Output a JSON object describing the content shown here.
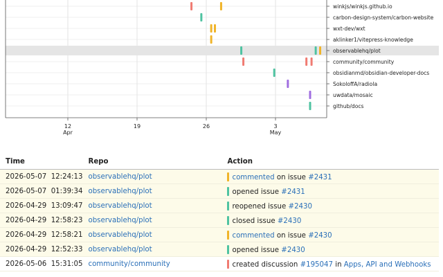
{
  "colors": {
    "commented": "#f0b429",
    "opened": "#4fc3a1",
    "reopened": "#4fc3a1",
    "closed": "#4fc3a1",
    "created": "#f07b72",
    "purple": "#a06ee0",
    "row_highlight": "#e5e5e5",
    "table_highlight": "#fdfbe9",
    "link": "#2a6fb8"
  },
  "chart_data": {
    "type": "scatter",
    "x_axis": {
      "ticks": [
        {
          "date": "2026-04-12",
          "label": "12",
          "sublabel": "Apr"
        },
        {
          "date": "2026-04-19",
          "label": "19",
          "sublabel": ""
        },
        {
          "date": "2026-04-26",
          "label": "26",
          "sublabel": ""
        },
        {
          "date": "2026-05-03",
          "label": "3",
          "sublabel": "May"
        }
      ]
    },
    "repos": [
      "winkjs/winkjs.github.io",
      "carbon-design-system/carbon-website",
      "wxt-dev/wxt",
      "aklinker1/vitepress-knowledge",
      "observablehq/plot",
      "community/community",
      "obsidianmd/obsidian-developer-docs",
      "SokoloffA/radiola",
      "uwdata/mosaic",
      "github/docs"
    ],
    "highlighted_repo": "observablehq/plot",
    "events": [
      {
        "repo": "winkjs/winkjs.github.io",
        "date": "2026-04-24T12:00",
        "kind": "created"
      },
      {
        "repo": "winkjs/winkjs.github.io",
        "date": "2026-04-27T12:00",
        "kind": "commented"
      },
      {
        "repo": "carbon-design-system/carbon-website",
        "date": "2026-04-25T12:00",
        "kind": "opened"
      },
      {
        "repo": "wxt-dev/wxt",
        "date": "2026-04-26T12:00",
        "kind": "commented"
      },
      {
        "repo": "wxt-dev/wxt",
        "date": "2026-04-26T21:00",
        "kind": "commented"
      },
      {
        "repo": "aklinker1/vitepress-knowledge",
        "date": "2026-04-26T12:00",
        "kind": "commented"
      },
      {
        "repo": "observablehq/plot",
        "date": "2026-04-29T12:58",
        "kind": "opened"
      },
      {
        "repo": "observablehq/plot",
        "date": "2026-05-07T01:39",
        "kind": "opened"
      },
      {
        "repo": "observablehq/plot",
        "date": "2026-05-07T12:24",
        "kind": "commented"
      },
      {
        "repo": "community/community",
        "date": "2026-04-29T18:00",
        "kind": "created"
      },
      {
        "repo": "community/community",
        "date": "2026-05-06T03:00",
        "kind": "created"
      },
      {
        "repo": "community/community",
        "date": "2026-05-06T15:31",
        "kind": "created"
      },
      {
        "repo": "obsidianmd/obsidian-developer-docs",
        "date": "2026-05-02T21:00",
        "kind": "opened"
      },
      {
        "repo": "SokoloffA/radiola",
        "date": "2026-05-04T06:00",
        "kind": "purple"
      },
      {
        "repo": "uwdata/mosaic",
        "date": "2026-05-06T12:00",
        "kind": "purple"
      },
      {
        "repo": "github/docs",
        "date": "2026-05-06T12:00",
        "kind": "opened"
      }
    ]
  },
  "table": {
    "headers": {
      "time": "Time",
      "repo": "Repo",
      "action": "Action"
    },
    "rows": [
      {
        "date": "2026-05-07",
        "time": "12:24:13",
        "repo": "observablehq/plot",
        "kind": "commented",
        "verb": "commented",
        "verb_is_link": true,
        "mid": " on issue ",
        "ref": "#2431",
        "tail": "",
        "tail_link": "",
        "highlight": true
      },
      {
        "date": "2026-05-07",
        "time": "01:39:34",
        "repo": "observablehq/plot",
        "kind": "opened",
        "verb": "opened issue",
        "verb_is_link": false,
        "mid": " ",
        "ref": "#2431",
        "tail": "",
        "tail_link": "",
        "highlight": true
      },
      {
        "date": "2026-04-29",
        "time": "13:09:47",
        "repo": "observablehq/plot",
        "kind": "reopened",
        "verb": "reopened issue",
        "verb_is_link": false,
        "mid": " ",
        "ref": "#2430",
        "tail": "",
        "tail_link": "",
        "highlight": true
      },
      {
        "date": "2026-04-29",
        "time": "12:58:23",
        "repo": "observablehq/plot",
        "kind": "closed",
        "verb": "closed issue",
        "verb_is_link": false,
        "mid": " ",
        "ref": "#2430",
        "tail": "",
        "tail_link": "",
        "highlight": true
      },
      {
        "date": "2026-04-29",
        "time": "12:58:21",
        "repo": "observablehq/plot",
        "kind": "commented",
        "verb": "commented",
        "verb_is_link": true,
        "mid": " on issue ",
        "ref": "#2430",
        "tail": "",
        "tail_link": "",
        "highlight": true
      },
      {
        "date": "2026-04-29",
        "time": "12:52:33",
        "repo": "observablehq/plot",
        "kind": "opened",
        "verb": "opened issue",
        "verb_is_link": false,
        "mid": " ",
        "ref": "#2430",
        "tail": "",
        "tail_link": "",
        "highlight": true
      },
      {
        "date": "2026-05-06",
        "time": "15:31:05",
        "repo": "community/community",
        "kind": "created",
        "verb": "created discussion",
        "verb_is_link": false,
        "mid": " ",
        "ref": "#195047",
        "tail": " in ",
        "tail_link": "Apps, API and Webhooks",
        "highlight": false
      }
    ]
  }
}
